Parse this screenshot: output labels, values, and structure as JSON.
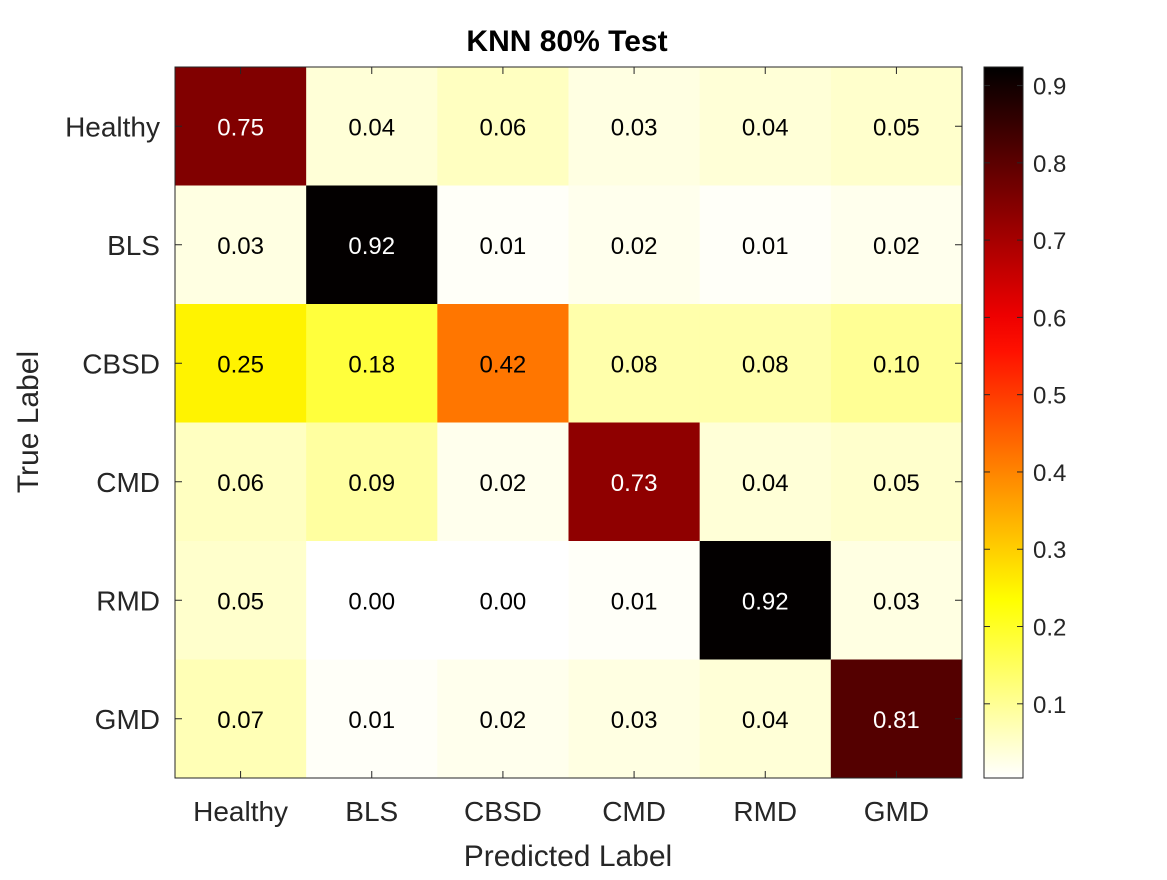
{
  "chart_data": {
    "type": "heatmap",
    "title": "KNN 80% Test",
    "xlabel": "Predicted Label",
    "ylabel": "True Label",
    "x_categories": [
      "Healthy",
      "BLS",
      "CBSD",
      "CMD",
      "RMD",
      "GMD"
    ],
    "y_categories": [
      "Healthy",
      "BLS",
      "CBSD",
      "CMD",
      "RMD",
      "GMD"
    ],
    "values": [
      [
        0.75,
        0.04,
        0.06,
        0.03,
        0.04,
        0.05
      ],
      [
        0.03,
        0.92,
        0.01,
        0.02,
        0.01,
        0.02
      ],
      [
        0.25,
        0.18,
        0.42,
        0.08,
        0.08,
        0.1
      ],
      [
        0.06,
        0.09,
        0.02,
        0.73,
        0.04,
        0.05
      ],
      [
        0.05,
        0.0,
        0.0,
        0.01,
        0.92,
        0.03
      ],
      [
        0.07,
        0.01,
        0.02,
        0.03,
        0.04,
        0.81
      ]
    ],
    "value_labels": [
      [
        "0.75",
        "0.04",
        "0.06",
        "0.03",
        "0.04",
        "0.05"
      ],
      [
        "0.03",
        "0.92",
        "0.01",
        "0.02",
        "0.01",
        "0.02"
      ],
      [
        "0.25",
        "0.18",
        "0.42",
        "0.08",
        "0.08",
        "0.10"
      ],
      [
        "0.06",
        "0.09",
        "0.02",
        "0.73",
        "0.04",
        "0.05"
      ],
      [
        "0.05",
        "0.00",
        "0.00",
        "0.01",
        "0.92",
        "0.03"
      ],
      [
        "0.07",
        "0.01",
        "0.02",
        "0.03",
        "0.04",
        "0.81"
      ]
    ],
    "colormap": "hot (reversed)",
    "colorbar": {
      "range": [
        0.004,
        0.924
      ],
      "ticks": [
        0.1,
        0.2,
        0.3,
        0.4,
        0.5,
        0.6,
        0.7,
        0.8,
        0.9
      ],
      "tick_labels": [
        "0.1",
        "0.2",
        "0.3",
        "0.4",
        "0.5",
        "0.6",
        "0.7",
        "0.8",
        "0.9"
      ],
      "placement": "right"
    },
    "grid": false,
    "colors": {
      "dark_text": "#000000",
      "light_text": "#ffffff",
      "axis": "#262626"
    }
  }
}
